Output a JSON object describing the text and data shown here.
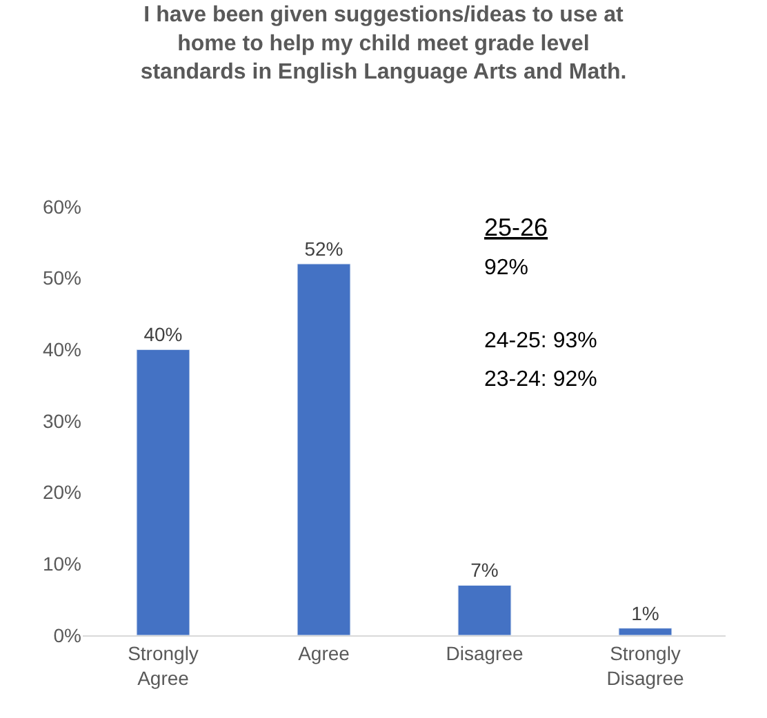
{
  "chart_data": {
    "type": "bar",
    "title": "I have been given suggestions/ideas to use at home to help my child meet grade level standards in English Language Arts and Math.",
    "categories": [
      "Strongly Agree",
      "Agree",
      "Disagree",
      "Strongly Disagree"
    ],
    "values": [
      40,
      52,
      7,
      1
    ],
    "value_labels": [
      "40%",
      "52%",
      "7%",
      "1%"
    ],
    "color": "#4472c4",
    "ylim": [
      0,
      60
    ],
    "yticks": [
      {
        "value": 0,
        "label": "0%"
      },
      {
        "value": 10,
        "label": "10%"
      },
      {
        "value": 20,
        "label": "20%"
      },
      {
        "value": 30,
        "label": "30%"
      },
      {
        "value": 40,
        "label": "40%"
      },
      {
        "value": 50,
        "label": "50%"
      },
      {
        "value": 60,
        "label": "60%"
      }
    ],
    "grid": false,
    "legend": false,
    "annotations": [
      "25-26",
      "92%",
      "24-25: 93%",
      "23-24: 92%"
    ]
  }
}
